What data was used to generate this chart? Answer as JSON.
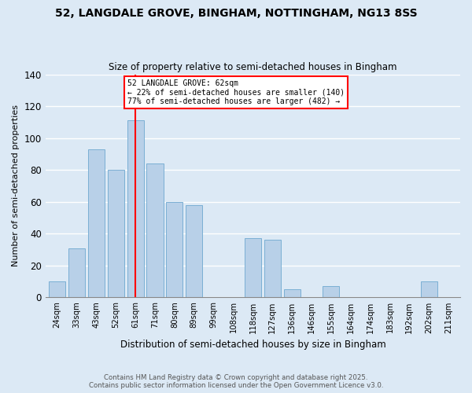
{
  "title": "52, LANGDALE GROVE, BINGHAM, NOTTINGHAM, NG13 8SS",
  "subtitle": "Size of property relative to semi-detached houses in Bingham",
  "xlabel": "Distribution of semi-detached houses by size in Bingham",
  "ylabel": "Number of semi-detached properties",
  "bar_labels": [
    "24sqm",
    "33sqm",
    "43sqm",
    "52sqm",
    "61sqm",
    "71sqm",
    "80sqm",
    "89sqm",
    "99sqm",
    "108sqm",
    "118sqm",
    "127sqm",
    "136sqm",
    "146sqm",
    "155sqm",
    "164sqm",
    "174sqm",
    "183sqm",
    "192sqm",
    "202sqm",
    "211sqm"
  ],
  "bar_values": [
    10,
    31,
    93,
    80,
    111,
    84,
    60,
    58,
    0,
    0,
    37,
    36,
    5,
    0,
    7,
    0,
    0,
    0,
    0,
    10,
    0
  ],
  "bar_color": "#b8d0e8",
  "bar_edge_color": "#7aafd4",
  "background_color": "#dce9f5",
  "grid_color": "#ffffff",
  "red_line_x_label": "61sqm",
  "annotation_title": "52 LANGDALE GROVE: 62sqm",
  "annotation_line1": "← 22% of semi-detached houses are smaller (140)",
  "annotation_line2": "77% of semi-detached houses are larger (482) →",
  "footer1": "Contains HM Land Registry data © Crown copyright and database right 2025.",
  "footer2": "Contains public sector information licensed under the Open Government Licence v3.0.",
  "ylim": [
    0,
    140
  ],
  "yticks": [
    0,
    20,
    40,
    60,
    80,
    100,
    120,
    140
  ]
}
